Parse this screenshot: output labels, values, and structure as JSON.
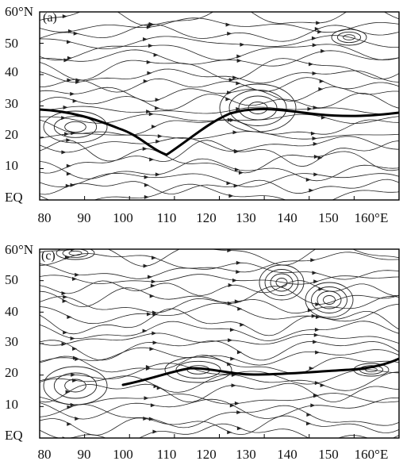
{
  "panels": [
    {
      "id": "a",
      "label": "(a)",
      "y_labels": [
        "60°N",
        "50",
        "40",
        "30",
        "20",
        "10",
        "EQ"
      ],
      "x_labels": [
        "80",
        "90",
        "100",
        "110",
        "120",
        "130",
        "140",
        "150",
        "160°E"
      ]
    },
    {
      "id": "c",
      "label": "(c)",
      "y_labels": [
        "60°N",
        "50",
        "40",
        "30",
        "20",
        "10",
        "EQ"
      ],
      "x_labels": [
        "80",
        "90",
        "100",
        "110",
        "120",
        "130",
        "140",
        "150",
        "160°E"
      ]
    }
  ],
  "colors": {
    "line": "#222222",
    "frame": "#000000",
    "ridge": "#000000"
  }
}
